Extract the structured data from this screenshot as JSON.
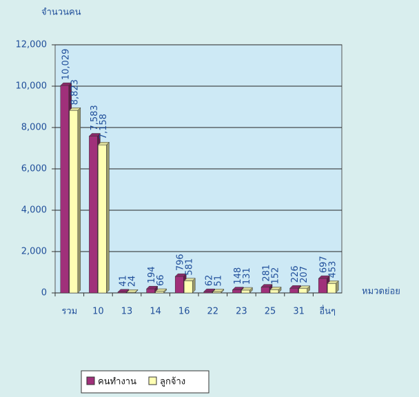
{
  "chart_data": {
    "type": "bar",
    "y_axis_label": "จำนวนคน",
    "x_axis_label": "หมวดย่อย",
    "categories": [
      "รวม",
      "10",
      "13",
      "14",
      "16",
      "22",
      "23",
      "25",
      "31",
      "อื่นๆ"
    ],
    "series": [
      {
        "name": "คนทำงาน",
        "color": "#a0307a",
        "values": [
          10029,
          7583,
          41,
          194,
          796,
          62,
          148,
          281,
          226,
          697
        ],
        "value_labels": [
          "10,029",
          "7,583",
          "41",
          "194",
          "796",
          "62",
          "148",
          "281",
          "226",
          "697"
        ]
      },
      {
        "name": "ลูกจ้าง",
        "color": "#ffffb3",
        "values": [
          8823,
          7158,
          24,
          66,
          581,
          51,
          131,
          152,
          207,
          453
        ],
        "value_labels": [
          "8,823",
          "7,158",
          "24",
          "66",
          "581",
          "51",
          "131",
          "152",
          "207",
          "453"
        ]
      }
    ],
    "ylim": [
      0,
      12000
    ],
    "yticks": [
      0,
      {
        "value": 2000,
        "label": "2,000"
      },
      {
        "value": 4000,
        "label": "4,000"
      },
      {
        "value": 6000,
        "label": "6,000"
      },
      {
        "value": 8000,
        "label": "8,000"
      },
      {
        "value": 10000,
        "label": "10,000"
      },
      {
        "value": 12000,
        "label": "12,000"
      }
    ],
    "grid": true
  }
}
